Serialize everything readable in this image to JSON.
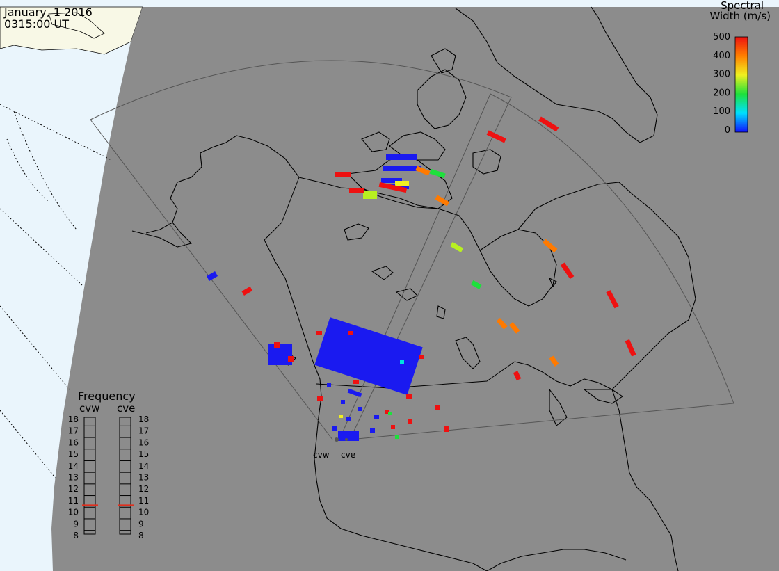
{
  "header": {
    "date": "January, 1 2016",
    "time": "0315:00 UT"
  },
  "colorbar": {
    "title_line1": "Spectral",
    "title_line2": "Width (m/s)",
    "ticks": [
      "500",
      "400",
      "300",
      "200",
      "100",
      "0"
    ]
  },
  "frequency_panel": {
    "title": "Frequency",
    "left_label": "cvw",
    "right_label": "cve",
    "ticks": [
      "18",
      "17",
      "16",
      "15",
      "14",
      "13",
      "12",
      "11",
      "10",
      "9",
      "8"
    ],
    "cvw_freq_mhz": 10.6,
    "cve_freq_mhz": 10.6,
    "marker_color": "#e0301e"
  },
  "radar_sites": {
    "west": "cvw",
    "east": "cve"
  },
  "colors": {
    "night_shade": "#8c8c8c",
    "day_land": "#f8f8e6",
    "ocean": "#eaf5fc"
  }
}
